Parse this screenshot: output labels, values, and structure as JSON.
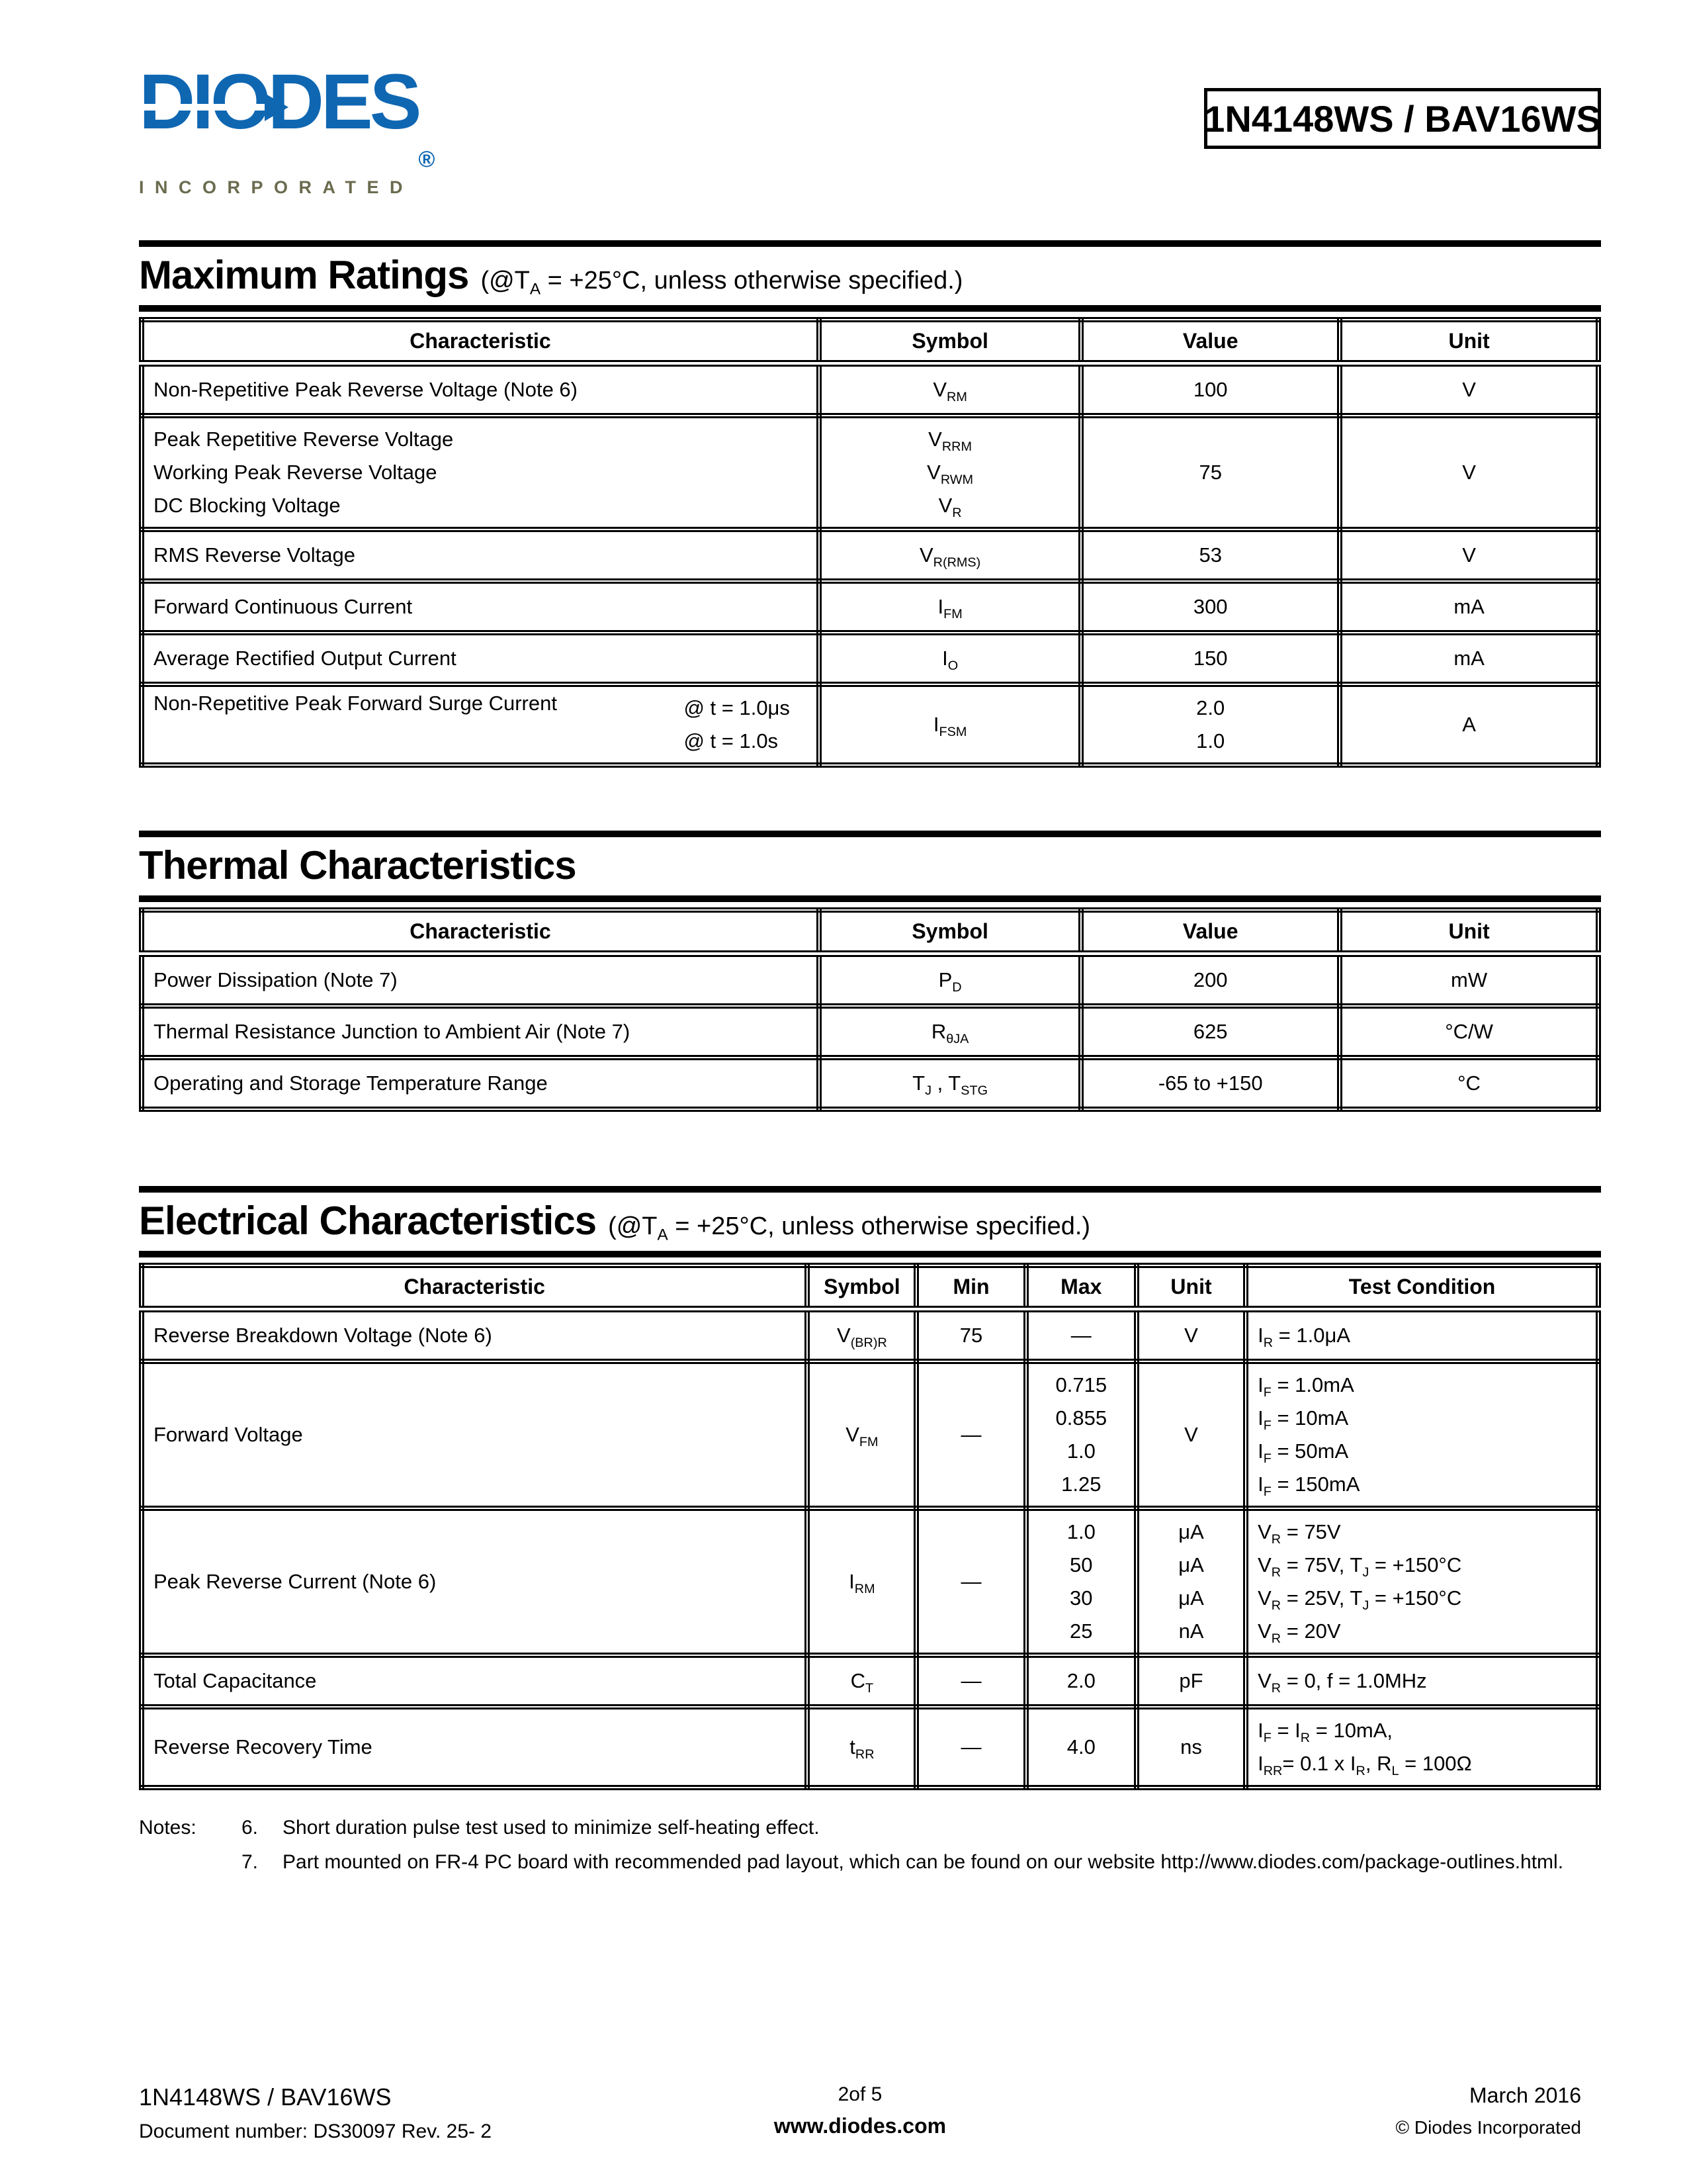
{
  "header": {
    "brand": "DIODES",
    "brand_registered": "®",
    "brand_sub": "INCORPORATED",
    "part_number": "1N4148WS / BAV16WS"
  },
  "maximum_ratings": {
    "title": "Maximum Ratings",
    "subtitle": "(@T_A_ = +25°C, unless otherwise specified.)",
    "columns": [
      "Characteristic",
      "Symbol",
      "Value",
      "Unit"
    ],
    "rows": [
      {
        "characteristic": "Non-Repetitive Peak Reverse Voltage (Note 6)",
        "symbol": [
          "V_RM_"
        ],
        "value": [
          "100"
        ],
        "unit": "V"
      },
      {
        "characteristic_lines": [
          "Peak Repetitive Reverse Voltage",
          "Working Peak Reverse Voltage",
          "DC Blocking Voltage"
        ],
        "symbol": [
          "V_RRM_",
          "V_RWM_",
          "V_R_"
        ],
        "value": [
          "75"
        ],
        "unit": "V"
      },
      {
        "characteristic": "RMS Reverse Voltage",
        "symbol": [
          "V_R(RMS)_"
        ],
        "value": [
          "53"
        ],
        "unit": "V"
      },
      {
        "characteristic": "Forward Continuous Current",
        "symbol": [
          "I_FM_"
        ],
        "value": [
          "300"
        ],
        "unit": "mA"
      },
      {
        "characteristic": "Average Rectified Output Current",
        "symbol": [
          "I_O_"
        ],
        "value": [
          "150"
        ],
        "unit": "mA"
      },
      {
        "characteristic": "Non-Repetitive Peak Forward Surge Current",
        "conditions": [
          "@ t = 1.0μs",
          "@ t = 1.0s"
        ],
        "symbol": [
          "I_FSM_"
        ],
        "value": [
          "2.0",
          "1.0"
        ],
        "unit": "A"
      }
    ]
  },
  "thermal": {
    "title": "Thermal Characteristics",
    "columns": [
      "Characteristic",
      "Symbol",
      "Value",
      "Unit"
    ],
    "rows": [
      {
        "characteristic": "Power Dissipation (Note 7)",
        "symbol": "P_D_",
        "value": "200",
        "unit": "mW"
      },
      {
        "characteristic": "Thermal Resistance Junction to Ambient Air (Note 7)",
        "symbol": "R_θJA_",
        "value": "625",
        "unit": "°C/W"
      },
      {
        "characteristic": "Operating and Storage Temperature Range",
        "symbol": "T_J_ , T_STG_",
        "value": "-65 to +150",
        "unit": "°C"
      }
    ]
  },
  "electrical": {
    "title": "Electrical Characteristics",
    "subtitle": "(@T_A_ = +25°C, unless otherwise specified.)",
    "columns": [
      "Characteristic",
      "Symbol",
      "Min",
      "Max",
      "Unit",
      "Test Condition"
    ],
    "rows": [
      {
        "characteristic": "Reverse Breakdown Voltage (Note 6)",
        "symbol": "V_(BR)R_",
        "min": "75",
        "max": [
          "—"
        ],
        "unit": [
          "V"
        ],
        "conditions": [
          "I_R_ = 1.0μA"
        ]
      },
      {
        "characteristic": "Forward Voltage",
        "symbol": "V_FM_",
        "min": "—",
        "max": [
          "0.715",
          "0.855",
          "1.0",
          "1.25"
        ],
        "unit": [
          "V"
        ],
        "conditions": [
          "I_F_ = 1.0mA",
          "I_F_ = 10mA",
          "I_F_ = 50mA",
          "I_F_ = 150mA"
        ]
      },
      {
        "characteristic": "Peak Reverse Current (Note 6)",
        "symbol": "I_RM_",
        "min": "—",
        "max": [
          "1.0",
          "50",
          "30",
          "25"
        ],
        "unit": [
          "μA",
          "μA",
          "μA",
          "nA"
        ],
        "conditions": [
          "V_R_ = 75V",
          "V_R_ = 75V, T_J_ = +150°C",
          "V_R_ = 25V, T_J_ = +150°C",
          "V_R_ = 20V"
        ]
      },
      {
        "characteristic": "Total Capacitance",
        "symbol": "C_T_",
        "min": "—",
        "max": [
          "2.0"
        ],
        "unit": [
          "pF"
        ],
        "conditions": [
          "V_R_ = 0, f = 1.0MHz"
        ]
      },
      {
        "characteristic": "Reverse Recovery Time",
        "symbol": "t_RR_",
        "min": "—",
        "max": [
          "4.0"
        ],
        "unit": [
          "ns"
        ],
        "conditions": [
          "I_F_ = I_R_ = 10mA,",
          "I_RR_= 0.1 x I_R_, R_L_ = 100Ω"
        ]
      }
    ]
  },
  "notes": {
    "label": "Notes:",
    "items": [
      {
        "num": "6.",
        "text": "Short duration pulse test used to minimize self-heating effect."
      },
      {
        "num": "7.",
        "text": "Part mounted on FR-4 PC board with recommended pad layout, which can be found on our website http://www.diodes.com/package-outlines.html."
      }
    ]
  },
  "footer": {
    "part": "1N4148WS / BAV16WS",
    "document": "Document number: DS30097 Rev. 25- 2",
    "page": "2of 5",
    "website": "www.diodes.com",
    "date": "March 2016",
    "copyright": "© Diodes Incorporated"
  },
  "colors": {
    "logo_blue": "#0f67b2",
    "logo_olive": "#6b6b4f"
  }
}
